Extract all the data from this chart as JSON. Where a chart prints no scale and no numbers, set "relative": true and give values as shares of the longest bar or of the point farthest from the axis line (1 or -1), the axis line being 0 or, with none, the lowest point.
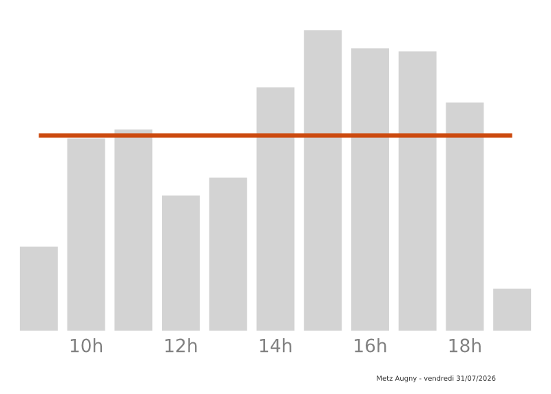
{
  "chart_data": {
    "type": "bar",
    "relative": true,
    "categories": [
      null,
      "10h",
      null,
      "12h",
      null,
      "14h",
      null,
      "16h",
      null,
      "18h",
      null
    ],
    "values": [
      0.28,
      0.64,
      0.67,
      0.45,
      0.51,
      0.81,
      1.0,
      0.94,
      0.93,
      0.76,
      0.14
    ],
    "color": "#d3d3d3",
    "ref_lines": [
      {
        "axis": "y",
        "value": 0.65,
        "color": "#cc4a0f"
      }
    ],
    "annotations": [
      "Metz Augny - vendredi 31/07/2026"
    ],
    "grid": false,
    "legend": false
  }
}
